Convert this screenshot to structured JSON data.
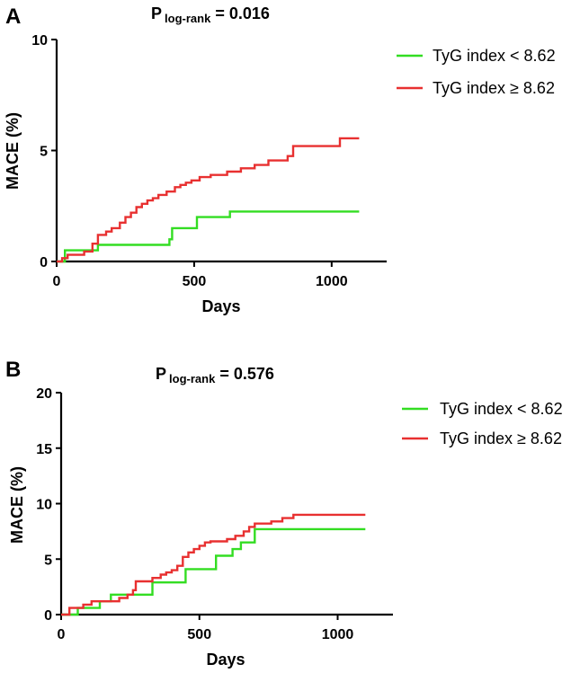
{
  "chart_data": [
    {
      "panel": "A",
      "type": "line",
      "step": true,
      "title_main": "P",
      "title_sub": "log-rank",
      "title_value": "= 0.016",
      "xlabel": "Days",
      "ylabel": "MACE (%)",
      "xlim": [
        0,
        1200
      ],
      "ylim": [
        0,
        10
      ],
      "xticks": [
        0,
        500,
        1000
      ],
      "yticks": [
        0,
        5,
        10
      ],
      "legend_position": "top-right",
      "series": [
        {
          "name": "TyG index < 8.62",
          "color": "#33dd22",
          "x": [
            0,
            30,
            130,
            150,
            330,
            410,
            420,
            510,
            630,
            1100
          ],
          "y": [
            0,
            0.5,
            0.5,
            0.75,
            0.75,
            1.0,
            1.5,
            2.0,
            2.25,
            2.25
          ]
        },
        {
          "name": "TyG index ≥ 8.62",
          "color": "#e83030",
          "x": [
            0,
            20,
            40,
            100,
            130,
            150,
            180,
            200,
            230,
            250,
            270,
            290,
            310,
            330,
            350,
            370,
            400,
            430,
            450,
            470,
            490,
            520,
            560,
            620,
            670,
            720,
            770,
            840,
            860,
            970,
            1030,
            1100
          ],
          "y": [
            0,
            0.15,
            0.3,
            0.45,
            0.8,
            1.2,
            1.35,
            1.5,
            1.75,
            2.0,
            2.2,
            2.45,
            2.6,
            2.75,
            2.85,
            3.0,
            3.15,
            3.35,
            3.45,
            3.55,
            3.65,
            3.8,
            3.9,
            4.05,
            4.2,
            4.35,
            4.55,
            4.75,
            5.2,
            5.2,
            5.55,
            5.55
          ]
        }
      ]
    },
    {
      "panel": "B",
      "type": "line",
      "step": true,
      "title_main": "P",
      "title_sub": "log-rank",
      "title_value": "= 0.576",
      "xlabel": "Days",
      "ylabel": "MACE (%)",
      "xlim": [
        0,
        1200
      ],
      "ylim": [
        0,
        20
      ],
      "xticks": [
        0,
        500,
        1000
      ],
      "yticks": [
        0,
        5,
        10,
        15,
        20
      ],
      "legend_position": "top-right",
      "series": [
        {
          "name": "TyG index < 8.62",
          "color": "#33dd22",
          "x": [
            0,
            60,
            140,
            180,
            330,
            450,
            560,
            600,
            620,
            650,
            700,
            1100
          ],
          "y": [
            0,
            0.6,
            1.2,
            1.8,
            2.9,
            4.1,
            5.3,
            5.3,
            5.9,
            6.5,
            7.7,
            7.7
          ]
        },
        {
          "name": "TyG index ≥ 8.62",
          "color": "#e83030",
          "x": [
            0,
            30,
            80,
            110,
            150,
            210,
            240,
            260,
            270,
            330,
            360,
            380,
            400,
            420,
            440,
            460,
            480,
            500,
            520,
            540,
            600,
            630,
            660,
            680,
            700,
            760,
            800,
            840,
            1100
          ],
          "y": [
            0,
            0.6,
            0.9,
            1.2,
            1.2,
            1.5,
            1.8,
            2.2,
            3.0,
            3.3,
            3.6,
            3.8,
            4.0,
            4.4,
            5.2,
            5.6,
            5.9,
            6.2,
            6.5,
            6.6,
            6.8,
            7.1,
            7.5,
            7.9,
            8.2,
            8.4,
            8.7,
            9.0,
            9.0
          ]
        }
      ]
    }
  ]
}
